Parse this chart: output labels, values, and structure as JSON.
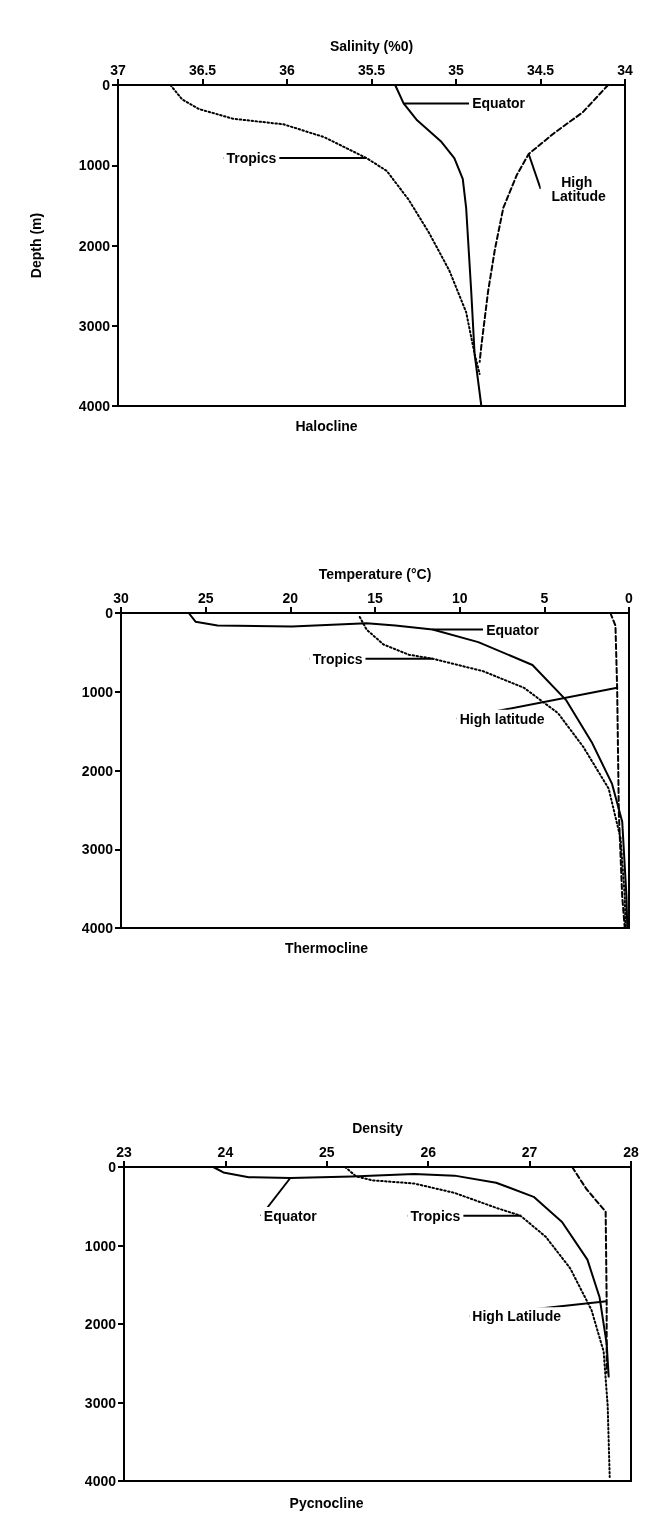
{
  "chart_data": [
    {
      "type": "line",
      "title": "Halocline",
      "xlabel": "Salinity (%0)",
      "ylabel": "Depth (m)",
      "xlim": [
        37,
        34
      ],
      "xticks": [
        37,
        36.5,
        36,
        35.5,
        35,
        34.5,
        34
      ],
      "ylim": [
        4000,
        0
      ],
      "yticks": [
        0,
        1000,
        2000,
        3000,
        4000
      ],
      "grid": false,
      "marker": "none",
      "series": [
        {
          "name": "Equator",
          "color": "#000000",
          "line_style": "solid",
          "x": [
            35.36,
            35.31,
            35.23,
            35.09,
            35.01,
            34.96,
            34.94,
            34.91,
            34.89,
            34.85
          ],
          "values": [
            0,
            230,
            440,
            700,
            910,
            1170,
            1530,
            2570,
            3350,
            4000
          ]
        },
        {
          "name": "Tropics",
          "color": "#000000",
          "line_style": "dotted",
          "x": [
            36.69,
            36.62,
            36.52,
            36.32,
            36.02,
            35.78,
            35.53,
            35.41,
            35.28,
            35.16,
            35.04,
            34.94,
            34.89,
            34.86
          ],
          "values": [
            0,
            180,
            300,
            420,
            490,
            650,
            910,
            1070,
            1430,
            1840,
            2310,
            2830,
            3350,
            3600
          ]
        },
        {
          "name": "High Latitude",
          "color": "#000000",
          "line_style": "dashed",
          "x": [
            34.1,
            34.25,
            34.42,
            34.57,
            34.64,
            34.72,
            34.77,
            34.81,
            34.85,
            34.86
          ],
          "values": [
            0,
            340,
            600,
            860,
            1120,
            1530,
            2050,
            2570,
            3250,
            3450
          ]
        }
      ]
    },
    {
      "type": "line",
      "title": "Thermocline",
      "xlabel": "Temperature (°C)",
      "xlim": [
        30,
        0
      ],
      "xticks": [
        30,
        25,
        20,
        15,
        10,
        5,
        0
      ],
      "ylim": [
        4000,
        0
      ],
      "yticks": [
        0,
        1000,
        2000,
        3000,
        4000
      ],
      "grid": false,
      "marker": "none",
      "series": [
        {
          "name": "Equator",
          "color": "#000000",
          "line_style": "solid",
          "x": [
            26.0,
            25.6,
            24.3,
            19.9,
            15.5,
            13.8,
            11.6,
            8.9,
            5.7,
            3.7,
            2.2,
            1.0,
            0.4,
            0.15,
            0.1
          ],
          "values": [
            0,
            110,
            160,
            170,
            130,
            160,
            210,
            370,
            660,
            1110,
            1640,
            2170,
            2650,
            3600,
            4000
          ]
        },
        {
          "name": "Tropics",
          "color": "#000000",
          "line_style": "dotted",
          "x": [
            15.9,
            15.5,
            14.5,
            13.0,
            11.6,
            8.6,
            6.2,
            4.2,
            2.7,
            1.2,
            0.5,
            0.25,
            0.2
          ],
          "values": [
            50,
            210,
            400,
            530,
            580,
            740,
            950,
            1270,
            1700,
            2230,
            2860,
            3600,
            4000
          ]
        },
        {
          "name": "High latitude",
          "color": "#000000",
          "line_style": "dashed",
          "x": [
            1.1,
            0.8,
            0.7,
            0.6,
            0.4,
            0.25
          ],
          "values": [
            0,
            160,
            950,
            2540,
            3600,
            4000
          ]
        }
      ]
    },
    {
      "type": "line",
      "title": "Pycnocline",
      "xlabel": "Density",
      "xlim": [
        23,
        28
      ],
      "xticks": [
        23,
        24,
        25,
        26,
        27,
        28
      ],
      "ylim": [
        4000,
        0
      ],
      "yticks": [
        0,
        1000,
        2000,
        3000,
        4000
      ],
      "grid": false,
      "marker": "none",
      "series": [
        {
          "name": "Equator",
          "color": "#000000",
          "line_style": "solid",
          "x": [
            23.88,
            23.98,
            24.23,
            24.64,
            25.25,
            25.86,
            26.26,
            26.67,
            27.04,
            27.32,
            27.57,
            27.69,
            27.76,
            27.78
          ],
          "values": [
            0,
            70,
            130,
            140,
            120,
            90,
            110,
            200,
            380,
            700,
            1180,
            1660,
            2250,
            2670
          ]
        },
        {
          "name": "Tropics",
          "color": "#000000",
          "line_style": "dotted",
          "x": [
            25.18,
            25.29,
            25.45,
            25.86,
            26.26,
            26.67,
            26.91,
            27.16,
            27.4,
            27.61,
            27.73,
            27.77,
            27.79
          ],
          "values": [
            0,
            120,
            170,
            210,
            330,
            520,
            620,
            890,
            1290,
            1820,
            2350,
            3040,
            3950
          ]
        },
        {
          "name": "High Latilude",
          "color": "#000000",
          "line_style": "dashed",
          "x": [
            27.42,
            27.56,
            27.75,
            27.76,
            27.76
          ],
          "values": [
            0,
            280,
            570,
            1710,
            2620
          ]
        }
      ]
    }
  ]
}
